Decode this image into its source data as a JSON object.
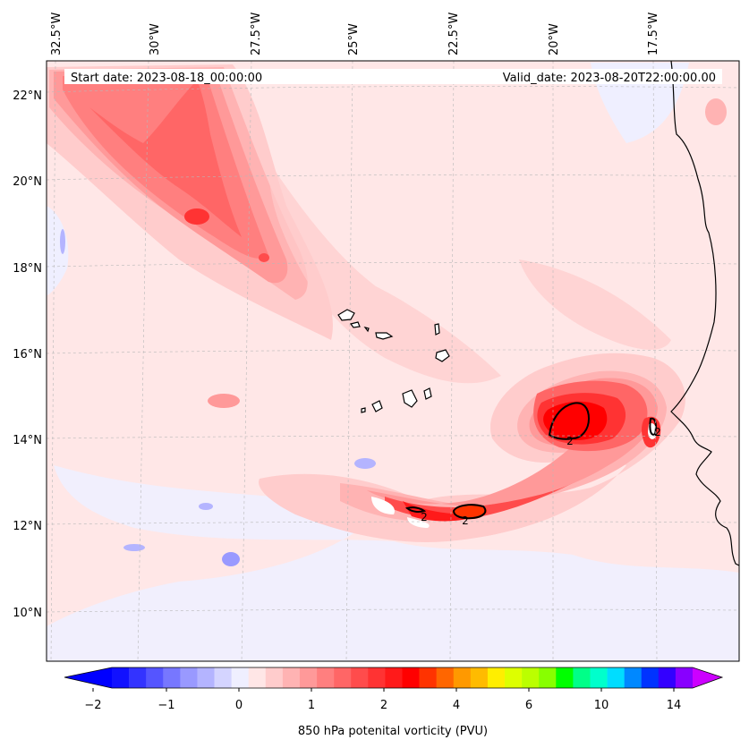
{
  "map": {
    "start_label": "Start date: 2023-08-18_00:00:00",
    "valid_label": "Valid_date: 2023-08-20T22:00:00.00",
    "lon_labels": [
      "32.5°W",
      "30°W",
      "27.5°W",
      "25°W",
      "22.5°W",
      "20°W",
      "17.5°W"
    ],
    "lat_labels": [
      "22°N",
      "20°N",
      "18°N",
      "16°N",
      "14°N",
      "12°N",
      "10°N"
    ],
    "contour_labels": [
      "2",
      "2",
      "2",
      "2"
    ]
  },
  "colorbar": {
    "title": "850 hPa potenital vorticity (PVU)",
    "tick_labels": [
      "−2",
      "−1",
      "0",
      "1",
      "2",
      "4",
      "6",
      "10",
      "14"
    ],
    "colors": [
      "#1111ff",
      "#3333ff",
      "#5555ff",
      "#7777ff",
      "#9999ff",
      "#b4b4ff",
      "#d4d4ff",
      "#efefff",
      "#ffe6e6",
      "#ffcccc",
      "#ffb3b3",
      "#ff9999",
      "#ff7f7f",
      "#ff6666",
      "#ff4c4c",
      "#ff3333",
      "#ff1a1a",
      "#ff0000",
      "#ff3300",
      "#ff6600",
      "#ff9900",
      "#ffbb00",
      "#ffee00",
      "#ddff00",
      "#bbff00",
      "#88ff00",
      "#00ff00",
      "#00ff88",
      "#00ffcc",
      "#00ddff",
      "#0088ff",
      "#0033ff",
      "#3300ff",
      "#8800ff"
    ],
    "under_color": "#0000ff",
    "over_color": "#cc00ff"
  }
}
